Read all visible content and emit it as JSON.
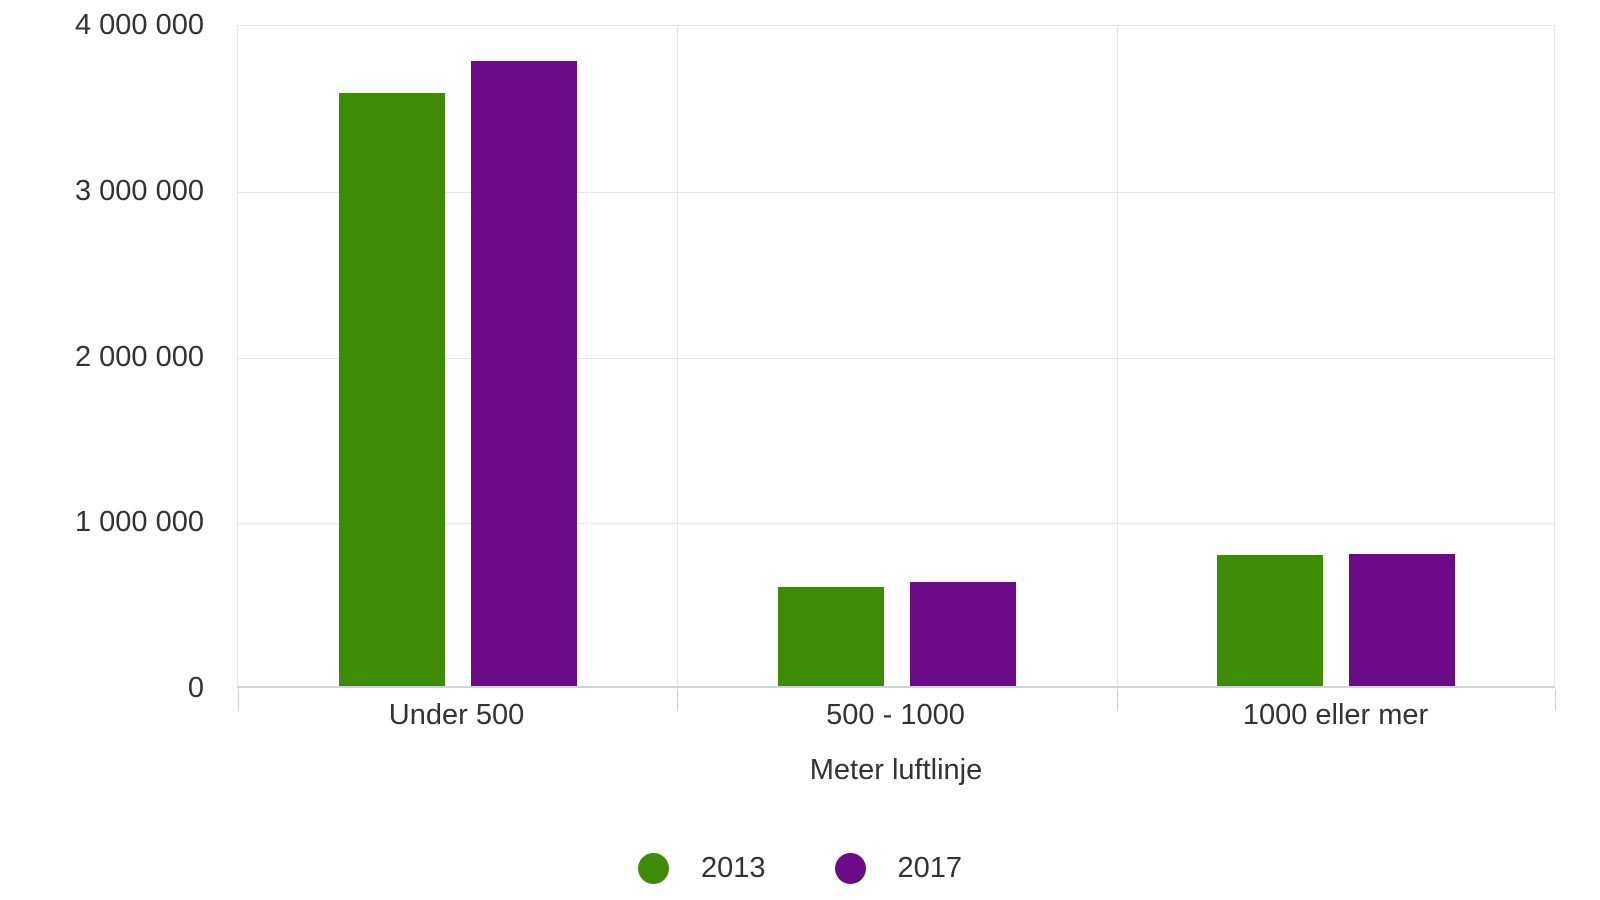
{
  "chart_data": {
    "type": "bar",
    "title": "",
    "xlabel": "Meter luftlinje",
    "ylabel": "",
    "categories": [
      "Under 500",
      "500 - 1000",
      "1000 eller mer"
    ],
    "series": [
      {
        "name": "2013",
        "color": "#3e8b06",
        "values": [
          3580000,
          600000,
          790000
        ]
      },
      {
        "name": "2017",
        "color": "#6c0a87",
        "values": [
          3770000,
          630000,
          795000
        ]
      }
    ],
    "ylim": [
      0,
      4000000
    ],
    "yticks": [
      0,
      1000000,
      2000000,
      3000000,
      4000000
    ],
    "ytick_labels": [
      "0",
      "1 000 000",
      "2 000 000",
      "3 000 000",
      "4 000 000"
    ],
    "grid": true,
    "legend_position": "bottom",
    "colors": {
      "text": "#333333",
      "gridline": "#e6e6e6",
      "axis_line": "#ccd5dd",
      "background": "#ffffff"
    }
  }
}
